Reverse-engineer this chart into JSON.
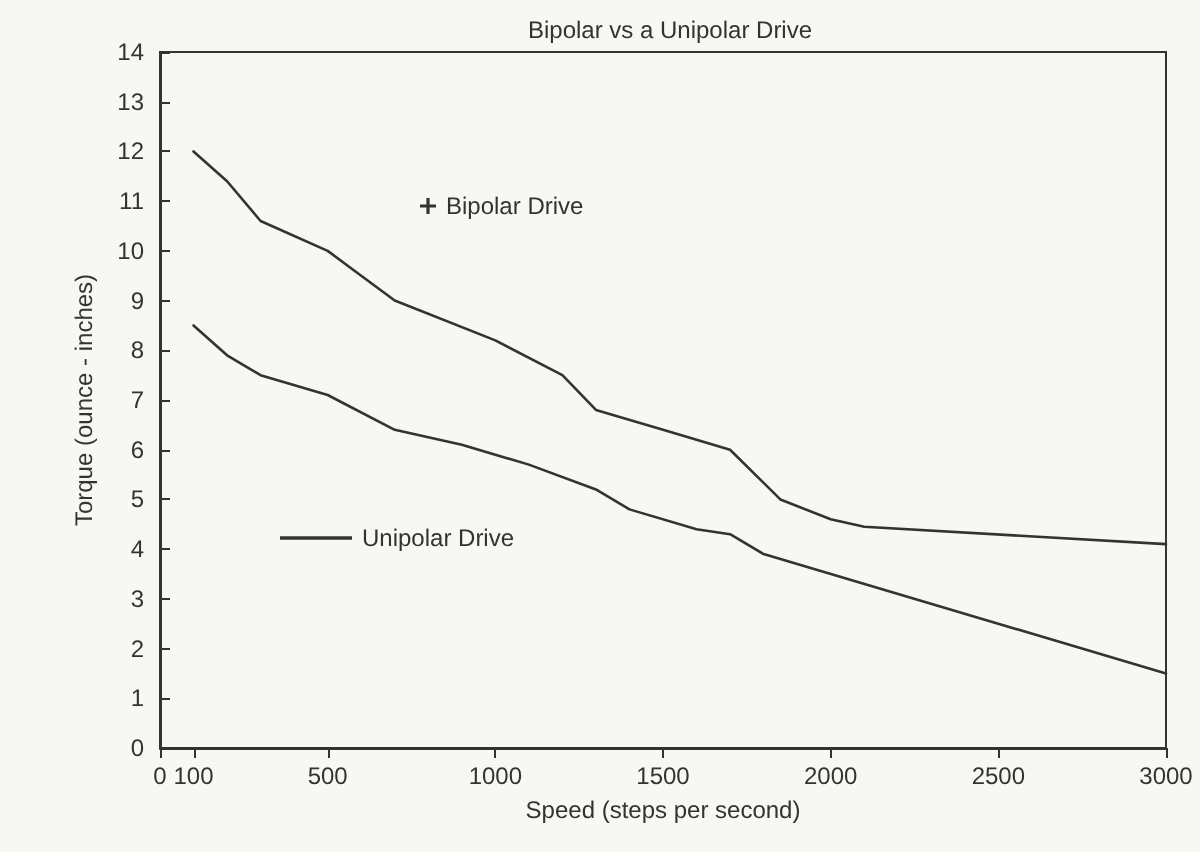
{
  "chart_data": {
    "type": "line",
    "title": "Bipolar vs a Unipolar Drive",
    "xlabel": "Speed (steps per second)",
    "ylabel": "Torque (ounce - inches)",
    "series": [
      {
        "name": "Bipolar Drive",
        "color": "#333333",
        "x": [
          100,
          200,
          300,
          500,
          600,
          700,
          1000,
          1200,
          1300,
          1500,
          1700,
          1850,
          2000,
          2100,
          3000
        ],
        "values": [
          12.0,
          11.4,
          10.6,
          10.0,
          9.5,
          9.0,
          8.2,
          7.5,
          6.8,
          6.4,
          6.0,
          5.0,
          4.6,
          4.45,
          4.1
        ]
      },
      {
        "name": "Unipolar Drive",
        "color": "#333333",
        "x": [
          100,
          200,
          300,
          500,
          700,
          900,
          1100,
          1300,
          1400,
          1600,
          1700,
          1800,
          3000
        ],
        "values": [
          8.5,
          7.9,
          7.5,
          7.1,
          6.4,
          6.1,
          5.7,
          5.2,
          4.8,
          4.4,
          4.3,
          3.9,
          1.5
        ]
      }
    ],
    "xlim": [
      0,
      3000
    ],
    "xticks": [
      0,
      100,
      500,
      1000,
      1500,
      2000,
      2500,
      3000
    ],
    "ylim": [
      0,
      14
    ],
    "yticks": [
      0,
      1,
      2,
      3,
      4,
      5,
      6,
      7,
      8,
      9,
      10,
      11,
      12,
      13,
      14
    ],
    "grid": false,
    "legend": "left",
    "marker": "none",
    "line_style": "solid"
  }
}
